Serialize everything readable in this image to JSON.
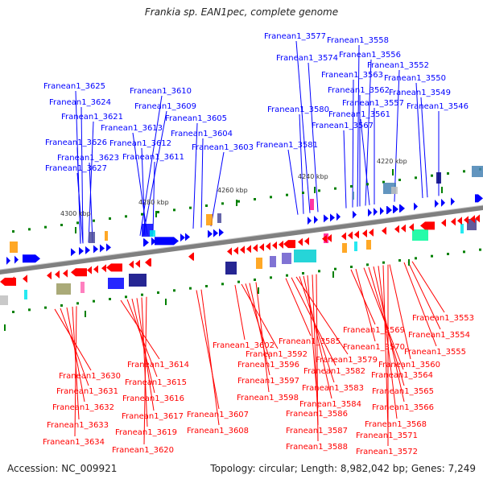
{
  "title": "Frankia sp. EAN1pec, complete genome",
  "footer": {
    "accession": "Accession: NC_009921",
    "summary": "Topology: circular; Length: 8,982,042 bp; Genes: 7,249"
  },
  "colors": {
    "forward": "#0000ff",
    "reverse": "#ff0000",
    "backbone": "#808080",
    "tick": "#008000"
  },
  "scale_ticks": [
    {
      "label": "4300 kbp"
    },
    {
      "label": "4280 kbp"
    },
    {
      "label": "4260 kbp"
    },
    {
      "label": "4240 kbp"
    },
    {
      "label": "4220 kbp"
    }
  ],
  "forward_labels": [
    "Franean1_3625",
    "Franean1_3624",
    "Franean1_3621",
    "Franean1_3626",
    "Franean1_3623",
    "Franean1_3627",
    "Franean1_3610",
    "Franean1_3609",
    "Franean1_3613",
    "Franean1_3612",
    "Franean1_3611",
    "Franean1_3605",
    "Franean1_3604",
    "Franean1_3603",
    "Franean1_3577",
    "Franean1_3574",
    "Franean1_3580",
    "Franean1_3581",
    "Franean1_3558",
    "Franean1_3556",
    "Franean1_3563",
    "Franean1_3562",
    "Franean1_3557",
    "Franean1_3561",
    "Franean1_3567",
    "Franean1_3552",
    "Franean1_3550",
    "Franean1_3549",
    "Franean1_3546"
  ],
  "reverse_labels": [
    "Franean1_3630",
    "Franean1_3631",
    "Franean1_3632",
    "Franean1_3633",
    "Franean1_3634",
    "Franean1_3614",
    "Franean1_3615",
    "Franean1_3616",
    "Franean1_3617",
    "Franean1_3619",
    "Franean1_3620",
    "Franean1_3607",
    "Franean1_3608",
    "Franean1_3602",
    "Franean1_3592",
    "Franean1_3596",
    "Franean1_3597",
    "Franean1_3598",
    "Franean1_3585",
    "Franean1_3579",
    "Franean1_3582",
    "Franean1_3583",
    "Franean1_3584",
    "Franean1_3586",
    "Franean1_3587",
    "Franean1_3588",
    "Franean1_3569",
    "Franean1_3570",
    "Franean1_3560",
    "Franean1_3564",
    "Franean1_3565",
    "Franean1_3566",
    "Franean1_3568",
    "Franean1_3571",
    "Franean1_3572",
    "Franean1_3553",
    "Franean1_3554",
    "Franean1_3555"
  ]
}
